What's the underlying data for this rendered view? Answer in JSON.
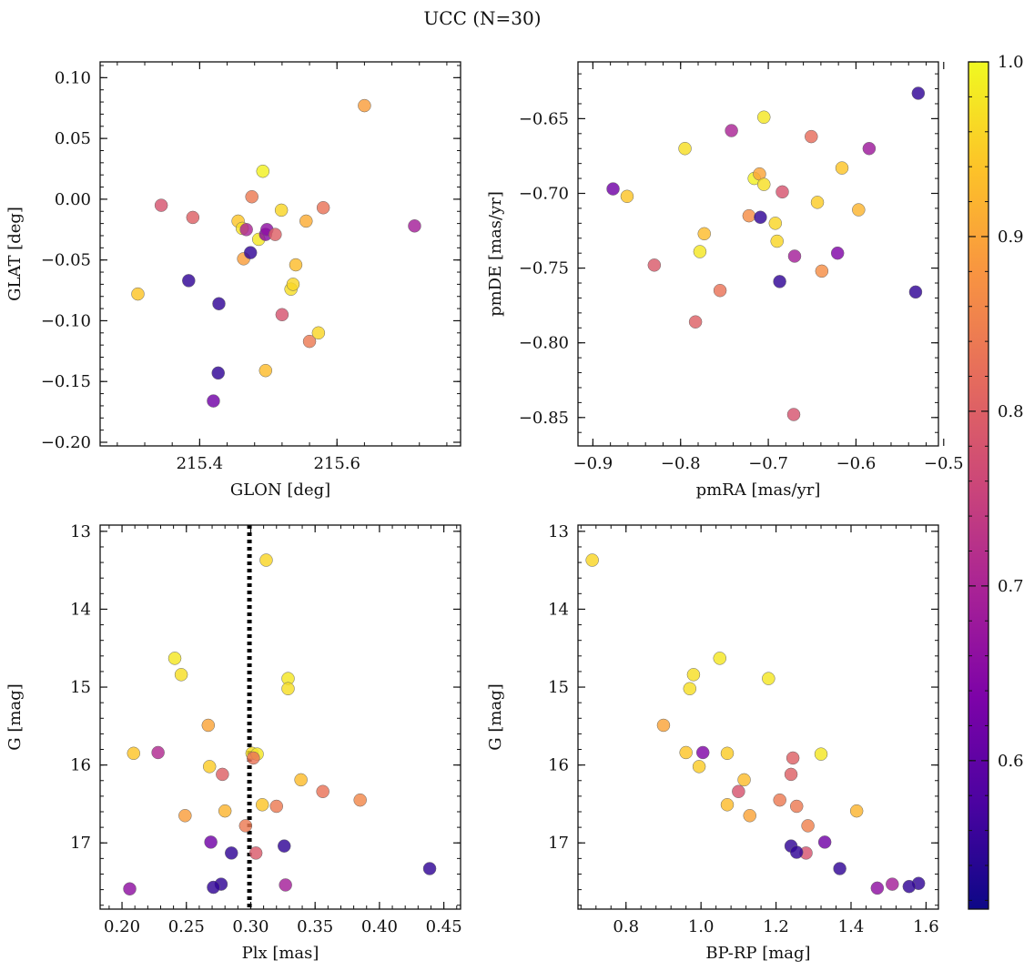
{
  "figure": {
    "title": "UCC (N=30)"
  },
  "chart_data": [
    {
      "type": "scatter",
      "xlabel": "GLON [deg]",
      "ylabel": "GLAT [deg]",
      "xlim": [
        215.255,
        215.78
      ],
      "ylim": [
        -0.203,
        0.113
      ],
      "y_inverted": false,
      "xticks": [
        215.4,
        215.6
      ],
      "xtick_labels": [
        "215.4",
        "215.6"
      ],
      "yticks": [
        0.1,
        0.05,
        0.0,
        -0.05,
        -0.1,
        -0.15,
        -0.2
      ],
      "ytick_labels": [
        "0.10",
        "0.05",
        "0.00",
        "−0.05",
        "−0.10",
        "−0.15",
        "−0.20"
      ],
      "points": [
        {
          "x": 215.64,
          "y": 0.077,
          "c": 0.89
        },
        {
          "x": 215.31,
          "y": -0.078,
          "c": 0.94
        },
        {
          "x": 215.344,
          "y": -0.005,
          "c": 0.78
        },
        {
          "x": 215.384,
          "y": -0.067,
          "c": 0.55
        },
        {
          "x": 215.39,
          "y": -0.015,
          "c": 0.8
        },
        {
          "x": 215.42,
          "y": -0.166,
          "c": 0.62
        },
        {
          "x": 215.427,
          "y": -0.143,
          "c": 0.55
        },
        {
          "x": 215.428,
          "y": -0.086,
          "c": 0.55
        },
        {
          "x": 215.456,
          "y": -0.018,
          "c": 0.94
        },
        {
          "x": 215.462,
          "y": -0.024,
          "c": 0.97
        },
        {
          "x": 215.464,
          "y": -0.049,
          "c": 0.89
        },
        {
          "x": 215.468,
          "y": -0.025,
          "c": 0.7
        },
        {
          "x": 215.474,
          "y": -0.044,
          "c": 0.55
        },
        {
          "x": 215.476,
          "y": 0.002,
          "c": 0.84
        },
        {
          "x": 215.486,
          "y": -0.033,
          "c": 0.98
        },
        {
          "x": 215.492,
          "y": 0.023,
          "c": 0.99
        },
        {
          "x": 215.496,
          "y": -0.029,
          "c": 0.65
        },
        {
          "x": 215.498,
          "y": -0.025,
          "c": 0.66
        },
        {
          "x": 215.496,
          "y": -0.141,
          "c": 0.93
        },
        {
          "x": 215.51,
          "y": -0.029,
          "c": 0.8
        },
        {
          "x": 215.519,
          "y": -0.009,
          "c": 0.96
        },
        {
          "x": 215.52,
          "y": -0.095,
          "c": 0.78
        },
        {
          "x": 215.533,
          "y": -0.074,
          "c": 0.97
        },
        {
          "x": 215.536,
          "y": -0.07,
          "c": 0.96
        },
        {
          "x": 215.54,
          "y": -0.054,
          "c": 0.93
        },
        {
          "x": 215.555,
          "y": -0.018,
          "c": 0.91
        },
        {
          "x": 215.56,
          "y": -0.117,
          "c": 0.84
        },
        {
          "x": 215.573,
          "y": -0.11,
          "c": 0.96
        },
        {
          "x": 215.58,
          "y": -0.007,
          "c": 0.83
        },
        {
          "x": 215.713,
          "y": -0.022,
          "c": 0.69
        }
      ]
    },
    {
      "type": "scatter",
      "xlabel": "pmRA [mas/yr]",
      "ylabel": "pmDE [mas/yr]",
      "xlim": [
        -0.917,
        -0.506
      ],
      "ylim": [
        -0.869,
        -0.612
      ],
      "y_inverted": false,
      "xticks": [
        -0.9,
        -0.8,
        -0.7,
        -0.6,
        -0.5
      ],
      "xtick_labels": [
        "−0.9",
        "−0.8",
        "−0.7",
        "−0.6",
        "−0.5"
      ],
      "yticks": [
        -0.65,
        -0.7,
        -0.75,
        -0.8,
        -0.85
      ],
      "ytick_labels": [
        "−0.65",
        "−0.70",
        "−0.75",
        "−0.80",
        "−0.85"
      ],
      "points": [
        {
          "x": -0.877,
          "y": -0.697,
          "c": 0.62
        },
        {
          "x": -0.861,
          "y": -0.702,
          "c": 0.94
        },
        {
          "x": -0.83,
          "y": -0.748,
          "c": 0.79
        },
        {
          "x": -0.795,
          "y": -0.67,
          "c": 0.97
        },
        {
          "x": -0.783,
          "y": -0.786,
          "c": 0.8
        },
        {
          "x": -0.778,
          "y": -0.739,
          "c": 0.98
        },
        {
          "x": -0.773,
          "y": -0.727,
          "c": 0.93
        },
        {
          "x": -0.755,
          "y": -0.765,
          "c": 0.83
        },
        {
          "x": -0.742,
          "y": -0.658,
          "c": 0.7
        },
        {
          "x": -0.722,
          "y": -0.715,
          "c": 0.87
        },
        {
          "x": -0.716,
          "y": -0.69,
          "c": 0.99
        },
        {
          "x": -0.71,
          "y": -0.687,
          "c": 0.9
        },
        {
          "x": -0.709,
          "y": -0.716,
          "c": 0.55
        },
        {
          "x": -0.705,
          "y": -0.649,
          "c": 0.98
        },
        {
          "x": -0.705,
          "y": -0.694,
          "c": 0.97
        },
        {
          "x": -0.692,
          "y": -0.72,
          "c": 0.96
        },
        {
          "x": -0.69,
          "y": -0.732,
          "c": 0.96
        },
        {
          "x": -0.687,
          "y": -0.759,
          "c": 0.55
        },
        {
          "x": -0.684,
          "y": -0.699,
          "c": 0.78
        },
        {
          "x": -0.67,
          "y": -0.742,
          "c": 0.69
        },
        {
          "x": -0.671,
          "y": -0.848,
          "c": 0.78
        },
        {
          "x": -0.651,
          "y": -0.662,
          "c": 0.82
        },
        {
          "x": -0.644,
          "y": -0.706,
          "c": 0.95
        },
        {
          "x": -0.639,
          "y": -0.752,
          "c": 0.87
        },
        {
          "x": -0.621,
          "y": -0.74,
          "c": 0.64
        },
        {
          "x": -0.616,
          "y": -0.683,
          "c": 0.94
        },
        {
          "x": -0.597,
          "y": -0.711,
          "c": 0.92
        },
        {
          "x": -0.585,
          "y": -0.67,
          "c": 0.68
        },
        {
          "x": -0.532,
          "y": -0.766,
          "c": 0.55
        },
        {
          "x": -0.529,
          "y": -0.633,
          "c": 0.55
        }
      ]
    },
    {
      "type": "scatter",
      "xlabel": "Plx [mas]",
      "ylabel": "G [mag]",
      "xlim": [
        0.183,
        0.463
      ],
      "ylim": [
        17.85,
        12.92
      ],
      "y_inverted": true,
      "xticks": [
        0.2,
        0.25,
        0.3,
        0.35,
        0.4,
        0.45
      ],
      "xtick_labels": [
        "0.20",
        "0.25",
        "0.30",
        "0.35",
        "0.40",
        "0.45"
      ],
      "yticks": [
        13,
        14,
        15,
        16,
        17
      ],
      "ytick_labels": [
        "13",
        "14",
        "15",
        "16",
        "17"
      ],
      "vline": {
        "x": 0.299,
        "style": "dotted"
      },
      "points": [
        {
          "x": 0.312,
          "y": 13.37,
          "c": 0.96
        },
        {
          "x": 0.241,
          "y": 14.63,
          "c": 0.98
        },
        {
          "x": 0.246,
          "y": 14.84,
          "c": 0.97
        },
        {
          "x": 0.329,
          "y": 14.89,
          "c": 0.98
        },
        {
          "x": 0.329,
          "y": 15.02,
          "c": 0.97
        },
        {
          "x": 0.267,
          "y": 15.49,
          "c": 0.9
        },
        {
          "x": 0.209,
          "y": 15.85,
          "c": 0.94
        },
        {
          "x": 0.228,
          "y": 15.84,
          "c": 0.71
        },
        {
          "x": 0.301,
          "y": 15.85,
          "c": 0.97
        },
        {
          "x": 0.305,
          "y": 15.86,
          "c": 0.98
        },
        {
          "x": 0.302,
          "y": 15.91,
          "c": 0.83
        },
        {
          "x": 0.268,
          "y": 16.02,
          "c": 0.95
        },
        {
          "x": 0.278,
          "y": 16.12,
          "c": 0.8
        },
        {
          "x": 0.339,
          "y": 16.19,
          "c": 0.93
        },
        {
          "x": 0.356,
          "y": 16.34,
          "c": 0.83
        },
        {
          "x": 0.385,
          "y": 16.45,
          "c": 0.86
        },
        {
          "x": 0.309,
          "y": 16.51,
          "c": 0.94
        },
        {
          "x": 0.32,
          "y": 16.53,
          "c": 0.84
        },
        {
          "x": 0.28,
          "y": 16.59,
          "c": 0.92
        },
        {
          "x": 0.249,
          "y": 16.65,
          "c": 0.89
        },
        {
          "x": 0.296,
          "y": 16.78,
          "c": 0.84
        },
        {
          "x": 0.269,
          "y": 16.99,
          "c": 0.62
        },
        {
          "x": 0.326,
          "y": 17.04,
          "c": 0.55
        },
        {
          "x": 0.304,
          "y": 17.13,
          "c": 0.79
        },
        {
          "x": 0.285,
          "y": 17.13,
          "c": 0.55
        },
        {
          "x": 0.439,
          "y": 17.33,
          "c": 0.55
        },
        {
          "x": 0.277,
          "y": 17.53,
          "c": 0.55
        },
        {
          "x": 0.327,
          "y": 17.54,
          "c": 0.69
        },
        {
          "x": 0.271,
          "y": 17.57,
          "c": 0.55
        },
        {
          "x": 0.206,
          "y": 17.59,
          "c": 0.66
        }
      ]
    },
    {
      "type": "scatter",
      "xlabel": "BP-RP [mag]",
      "ylabel": "G [mag]",
      "xlim": [
        0.672,
        1.633
      ],
      "ylim": [
        17.85,
        12.92
      ],
      "y_inverted": true,
      "xticks": [
        0.8,
        1.0,
        1.2,
        1.4,
        1.6
      ],
      "xtick_labels": [
        "0.8",
        "1.0",
        "1.2",
        "1.4",
        "1.6"
      ],
      "yticks": [
        13,
        14,
        15,
        16,
        17
      ],
      "ytick_labels": [
        "13",
        "14",
        "15",
        "16",
        "17"
      ],
      "points": [
        {
          "x": 0.71,
          "y": 13.37,
          "c": 0.96
        },
        {
          "x": 1.05,
          "y": 14.63,
          "c": 0.98
        },
        {
          "x": 0.98,
          "y": 14.84,
          "c": 0.97
        },
        {
          "x": 1.18,
          "y": 14.89,
          "c": 0.98
        },
        {
          "x": 0.97,
          "y": 15.02,
          "c": 0.97
        },
        {
          "x": 0.9,
          "y": 15.49,
          "c": 0.9
        },
        {
          "x": 0.96,
          "y": 15.84,
          "c": 0.94
        },
        {
          "x": 1.005,
          "y": 15.84,
          "c": 0.64
        },
        {
          "x": 1.07,
          "y": 15.85,
          "c": 0.95
        },
        {
          "x": 1.32,
          "y": 15.86,
          "c": 0.98
        },
        {
          "x": 1.245,
          "y": 15.91,
          "c": 0.8
        },
        {
          "x": 0.995,
          "y": 16.02,
          "c": 0.95
        },
        {
          "x": 1.24,
          "y": 16.12,
          "c": 0.8
        },
        {
          "x": 1.115,
          "y": 16.19,
          "c": 0.93
        },
        {
          "x": 1.1,
          "y": 16.34,
          "c": 0.78
        },
        {
          "x": 1.21,
          "y": 16.45,
          "c": 0.84
        },
        {
          "x": 1.07,
          "y": 16.51,
          "c": 0.93
        },
        {
          "x": 1.255,
          "y": 16.53,
          "c": 0.84
        },
        {
          "x": 1.415,
          "y": 16.59,
          "c": 0.92
        },
        {
          "x": 1.13,
          "y": 16.65,
          "c": 0.9
        },
        {
          "x": 1.285,
          "y": 16.78,
          "c": 0.85
        },
        {
          "x": 1.33,
          "y": 16.99,
          "c": 0.62
        },
        {
          "x": 1.24,
          "y": 17.04,
          "c": 0.55
        },
        {
          "x": 1.28,
          "y": 17.13,
          "c": 0.78
        },
        {
          "x": 1.255,
          "y": 17.12,
          "c": 0.55
        },
        {
          "x": 1.37,
          "y": 17.33,
          "c": 0.55
        },
        {
          "x": 1.58,
          "y": 17.52,
          "c": 0.55
        },
        {
          "x": 1.51,
          "y": 17.53,
          "c": 0.69
        },
        {
          "x": 1.555,
          "y": 17.56,
          "c": 0.55
        },
        {
          "x": 1.47,
          "y": 17.58,
          "c": 0.66
        }
      ]
    }
  ],
  "colorbar": {
    "cmap": "plasma",
    "range": [
      0.515,
      1.0
    ],
    "ticks": [
      0.6,
      0.7,
      0.8,
      0.9,
      1.0
    ],
    "tick_labels": [
      "0.6",
      "0.7",
      "0.8",
      "0.9",
      "1.0"
    ]
  }
}
